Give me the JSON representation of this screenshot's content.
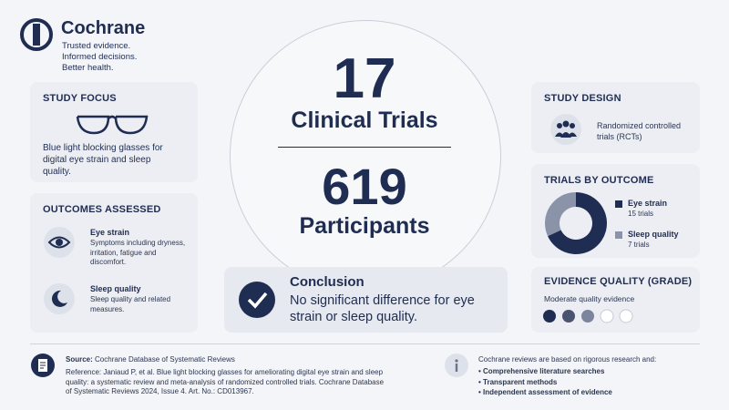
{
  "header": {
    "brand": "Cochrane",
    "tagline": [
      "Trusted evidence.",
      "Informed decisions.",
      "Better health."
    ]
  },
  "study_focus": {
    "title": "STUDY FOCUS",
    "text": "Blue light blocking glasses for digital eye strain and sleep quality."
  },
  "outcomes": {
    "title": "OUTCOMES ASSESSED",
    "items": [
      {
        "name": "Eye strain",
        "text": "Symptoms including dryness, irritation, fatigue and discomfort."
      },
      {
        "name": "Sleep quality",
        "text": "Sleep quality and related measures."
      }
    ]
  },
  "center": {
    "trials": 17,
    "trials_label": "Clinical Trials",
    "participants": 619,
    "participants_label": "Participants"
  },
  "conclusion": {
    "title": "Conclusion",
    "text": "No significant difference for eye strain or sleep quality."
  },
  "study_design": {
    "title": "STUDY DESIGN",
    "text": "Randomized controlled trials (RCTs)"
  },
  "trials_by_outcome": {
    "title": "TRIALS BY OUTCOME",
    "items": [
      {
        "name": "Eye strain",
        "value": 15,
        "label": "15 trials",
        "color": "#1f2d52"
      },
      {
        "name": "Sleep quality",
        "value": 7,
        "label": "7 trials",
        "color": "#8a93a8"
      }
    ]
  },
  "evidence": {
    "title": "EVIDENCE QUALITY (GRADE)",
    "text": "Moderate quality evidence"
  },
  "footer": {
    "source_label": "Source:",
    "source": "Cochrane Database of Systematic Reviews",
    "reference": "Reference: Janiaud P, et al. Blue light blocking glasses for ameliorating digital eye strain and sleep quality: a systematic review and meta-analysis of randomized controlled trials. Cochrane Database of Systematic Reviews 2024, Issue 4. Art. No.: CD013967.",
    "info": "Cochrane reviews are based on rigorous research and:",
    "bullets": [
      "Comprehensive literature searches",
      "Transparent methods",
      "Independent assessment of evidence"
    ]
  }
}
